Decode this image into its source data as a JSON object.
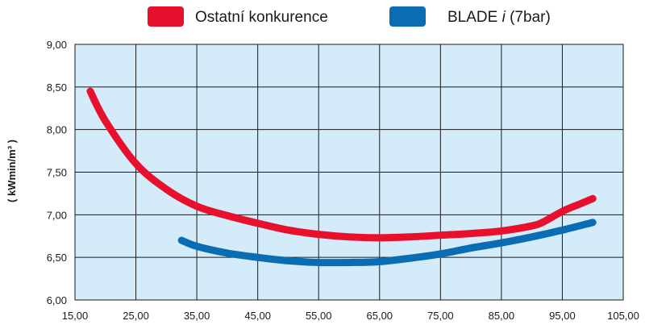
{
  "chart_data": {
    "type": "line",
    "title": "",
    "xlabel": "",
    "ylabel": "( kWmin/m³ )",
    "xlim": [
      15,
      105
    ],
    "ylim": [
      6,
      9
    ],
    "x_ticks": [
      "15,00",
      "25,00",
      "35,00",
      "45,00",
      "55,00",
      "65,00",
      "75,00",
      "85,00",
      "95,00",
      "105,00"
    ],
    "y_ticks": [
      "9,00",
      "8,50",
      "8,00",
      "7,50",
      "7,00",
      "6,50",
      "6,00"
    ],
    "grid": true,
    "legend_position": "top",
    "plot_background": "#d4ebfa",
    "series": [
      {
        "name": "Ostatní konkurence",
        "color": "#e8112d",
        "x": [
          17.5,
          20,
          25,
          30,
          35,
          40,
          45,
          50,
          55,
          60,
          65,
          70,
          75,
          80,
          85,
          90,
          92,
          95,
          98,
          100
        ],
        "y": [
          8.45,
          8.1,
          7.6,
          7.3,
          7.1,
          6.99,
          6.9,
          6.82,
          6.77,
          6.74,
          6.73,
          6.74,
          6.76,
          6.78,
          6.81,
          6.87,
          6.92,
          7.04,
          7.13,
          7.19
        ]
      },
      {
        "name": "BLADE ",
        "name_suffix_italic": "i",
        "name_suffix": " (7bar)",
        "color": "#0a6db3",
        "x": [
          32.5,
          35,
          40,
          45,
          50,
          55,
          60,
          65,
          70,
          75,
          80,
          85,
          90,
          95,
          100
        ],
        "y": [
          6.7,
          6.63,
          6.55,
          6.5,
          6.46,
          6.44,
          6.44,
          6.45,
          6.49,
          6.54,
          6.61,
          6.67,
          6.74,
          6.82,
          6.91
        ]
      }
    ]
  }
}
